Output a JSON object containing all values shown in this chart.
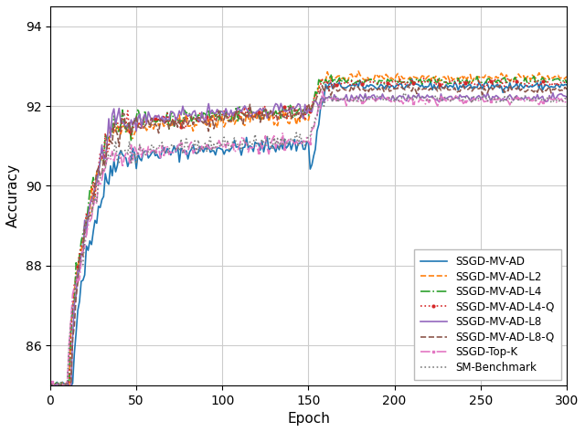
{
  "xlabel": "Epoch",
  "ylabel": "Accuracy",
  "xlim": [
    0,
    300
  ],
  "ylim": [
    85.0,
    94.5
  ],
  "yticks": [
    86,
    88,
    90,
    92,
    94
  ],
  "xticks": [
    0,
    50,
    100,
    150,
    200,
    250,
    300
  ],
  "series": [
    {
      "label": "SSGD-MV-AD",
      "color": "#1f77b4",
      "ls": "-",
      "marker": null,
      "ms": 0,
      "plateau": 92.5,
      "pre_val": 91.05,
      "start_epoch": 13,
      "has_dip": true,
      "dip_val": 90.4
    },
    {
      "label": "SSGD-MV-AD-L2",
      "color": "#ff7f0e",
      "ls": "--",
      "marker": null,
      "ms": 0,
      "plateau": 92.72,
      "pre_val": 91.75,
      "start_epoch": 11,
      "has_dip": false,
      "dip_val": 0
    },
    {
      "label": "SSGD-MV-AD-L4",
      "color": "#2ca02c",
      "ls": "-.",
      "marker": null,
      "ms": 0,
      "plateau": 92.62,
      "pre_val": 91.9,
      "start_epoch": 11,
      "has_dip": false,
      "dip_val": 0
    },
    {
      "label": "SSGD-MV-AD-L4-Q",
      "color": "#d62728",
      "ls": ":",
      "marker": "o",
      "ms": 2,
      "plateau": 92.58,
      "pre_val": 91.85,
      "start_epoch": 11,
      "has_dip": false,
      "dip_val": 0
    },
    {
      "label": "SSGD-MV-AD-L8",
      "color": "#9467bd",
      "ls": "-",
      "marker": null,
      "ms": 0,
      "plateau": 92.2,
      "pre_val": 91.95,
      "start_epoch": 12,
      "has_dip": false,
      "dip_val": 0
    },
    {
      "label": "SSGD-MV-AD-L8-Q",
      "color": "#8c564b",
      "ls": "--",
      "marker": null,
      "ms": 0,
      "plateau": 92.42,
      "pre_val": 91.8,
      "start_epoch": 12,
      "has_dip": false,
      "dip_val": 0
    },
    {
      "label": "SSGD-Top-K",
      "color": "#e377c2",
      "ls": "-.",
      "marker": "s",
      "ms": 2,
      "plateau": 92.15,
      "pre_val": 91.1,
      "start_epoch": 10,
      "has_dip": false,
      "dip_val": 0
    },
    {
      "label": "SM-Benchmark",
      "color": "#7f7f7f",
      "ls": ":",
      "marker": null,
      "ms": 0,
      "plateau": 92.18,
      "pre_val": 91.15,
      "start_epoch": 10,
      "has_dip": false,
      "dip_val": 0
    }
  ],
  "grid_color": "#cccccc",
  "bg_color": "#ffffff",
  "legend_loc": "lower right",
  "fig_width": 6.4,
  "fig_height": 4.73,
  "dpi": 100
}
